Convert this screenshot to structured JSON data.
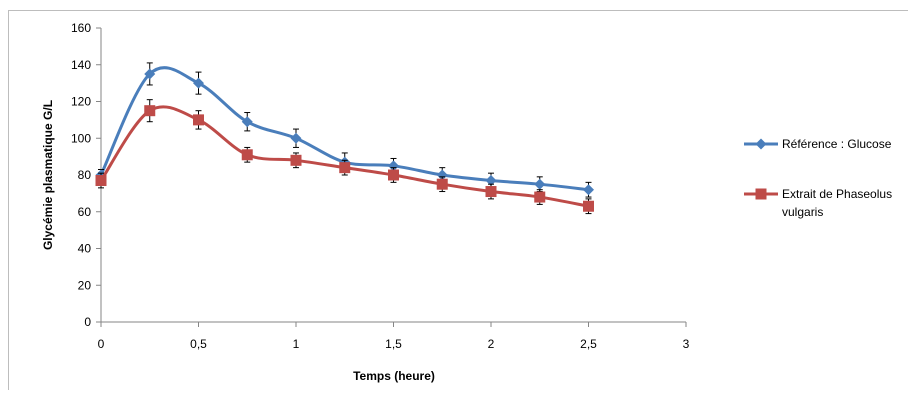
{
  "chart_data": {
    "type": "line",
    "xlabel": "Temps (heure)",
    "ylabel": "Glycémie plasmatique  G/L",
    "xlim": [
      0,
      3
    ],
    "ylim": [
      0,
      160
    ],
    "x_ticks": [
      "0",
      "0,5",
      "1",
      "1,5",
      "2",
      "2,5",
      "3"
    ],
    "y_ticks": [
      "0",
      "20",
      "40",
      "60",
      "80",
      "100",
      "120",
      "140",
      "160"
    ],
    "x_tick_values": [
      0,
      0.5,
      1,
      1.5,
      2,
      2.5,
      3
    ],
    "y_tick_values": [
      0,
      20,
      40,
      60,
      80,
      100,
      120,
      140,
      160
    ],
    "grid": false,
    "legend_position": "right",
    "series": [
      {
        "name": "Référence : Glucose",
        "color": "#4a7ebb",
        "marker": "diamond",
        "x": [
          0,
          0.25,
          0.5,
          0.75,
          1,
          1.25,
          1.5,
          1.75,
          2,
          2.25,
          2.5
        ],
        "y": [
          80,
          135,
          130,
          109,
          100,
          87,
          85,
          80,
          77,
          75,
          72
        ],
        "error": [
          3,
          6,
          6,
          5,
          5,
          5,
          4,
          4,
          4,
          4,
          4
        ]
      },
      {
        "name": "Extrait de Phaseolus vulgaris",
        "name_lines": [
          "Extrait de Phaseolus",
          "vulgaris"
        ],
        "color": "#be4b48",
        "marker": "square",
        "x": [
          0,
          0.25,
          0.5,
          0.75,
          1,
          1.25,
          1.5,
          1.75,
          2,
          2.25,
          2.5
        ],
        "y": [
          77,
          115,
          110,
          91,
          88,
          84,
          80,
          75,
          71,
          68,
          63
        ],
        "error": [
          4,
          6,
          5,
          4,
          4,
          4,
          4,
          4,
          4,
          4,
          4
        ]
      }
    ]
  }
}
